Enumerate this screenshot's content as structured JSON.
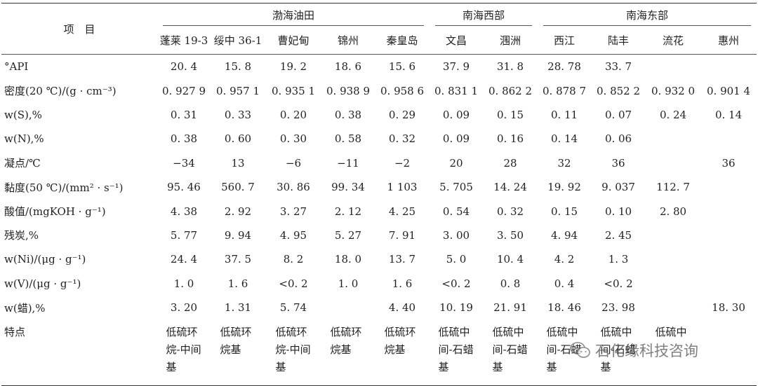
{
  "table": {
    "corner": "项　目",
    "groups": [
      {
        "name": "渤海油田",
        "span": 5
      },
      {
        "name": "南海西部",
        "span": 2
      },
      {
        "name": "南海东部",
        "span": 4
      }
    ],
    "columns": [
      "蓬莱 19-3",
      "绥中 36-1",
      "曹妃甸",
      "锦州",
      "秦皇岛",
      "文昌",
      "涠洲",
      "西江",
      "陆丰",
      "流花",
      "惠州"
    ],
    "rows": [
      {
        "label": "°API",
        "values": [
          "20. 4",
          "15. 8",
          "19. 2",
          "18. 6",
          "15. 6",
          "37. 9",
          "31. 8",
          "28. 78",
          "33. 7",
          "",
          ""
        ]
      },
      {
        "label": "密度(20 ℃)/(g · cm⁻³)",
        "values": [
          "0. 927 9",
          "0. 957 1",
          "0. 935 1",
          "0. 938 9",
          "0. 958 6",
          "0. 831 1",
          "0. 862 2",
          "0. 878 7",
          "0. 852 2",
          "0. 932 0",
          "0. 901 4"
        ]
      },
      {
        "label": "w(S),%",
        "values": [
          "0. 31",
          "0. 33",
          "0. 20",
          "0. 38",
          "0. 29",
          "0. 09",
          "0. 15",
          "0. 11",
          "0. 07",
          "0. 24",
          "0. 14"
        ]
      },
      {
        "label": "w(N),%",
        "values": [
          "0. 38",
          "0. 60",
          "0. 30",
          "0. 58",
          "0. 32",
          "0. 09",
          "0. 16",
          "0. 14",
          "0. 06",
          "",
          ""
        ]
      },
      {
        "label": "凝点/℃",
        "values": [
          "−34",
          "13",
          "−6",
          "−11",
          "−2",
          "20",
          "28",
          "32",
          "36",
          "",
          "36"
        ]
      },
      {
        "label": "黏度(50 ℃)/(mm² · s⁻¹)",
        "values": [
          "95. 46",
          "560. 7",
          "30. 86",
          "99. 34",
          "1 103",
          "5. 705",
          "14. 24",
          "19. 92",
          "9. 037",
          "112. 7",
          ""
        ]
      },
      {
        "label": "酸值/(mgKOH · g⁻¹)",
        "values": [
          "4. 38",
          "2. 92",
          "3. 27",
          "2. 12",
          "4. 25",
          "0. 54",
          "0. 32",
          "0. 15",
          "0. 10",
          "2. 80",
          ""
        ]
      },
      {
        "label": "残炭,%",
        "values": [
          "5. 77",
          "9. 94",
          "4. 95",
          "5. 27",
          "7. 91",
          "3. 00",
          "3. 50",
          "4. 94",
          "2. 45",
          "",
          ""
        ]
      },
      {
        "label": "w(Ni)/(μg · g⁻¹)",
        "values": [
          "24. 4",
          "37. 5",
          "8. 2",
          "18. 0",
          "13. 7",
          "5. 0",
          "10. 4",
          "4. 2",
          "1. 3",
          "",
          ""
        ]
      },
      {
        "label": "w(V)/(μg · g⁻¹)",
        "values": [
          "1. 0",
          "1. 6",
          "<0. 2",
          "1. 0",
          "1. 6",
          "<0. 2",
          "0. 8",
          "0. 4",
          "<0. 2",
          "",
          ""
        ]
      },
      {
        "label": "w(蜡),%",
        "values": [
          "3. 20",
          "1. 31",
          "5. 74",
          "",
          "4. 40",
          "10. 19",
          "21. 91",
          "18. 46",
          "23. 98",
          "",
          "18. 30"
        ]
      }
    ],
    "feature_row": {
      "label": "特点",
      "values": [
        "低硫环烷-中间基",
        "低硫环烷基",
        "低硫环烷-中间基",
        "低硫环烷基",
        "低硫环烷基",
        "低硫中间-石蜡基",
        "低硫中间-石蜡基",
        "低硫中间-石蜡基",
        "低硫中间-石蜡基",
        "低硫中",
        ""
      ]
    }
  },
  "watermark": {
    "text": "石化缘科技咨询",
    "icon": "wechat-icon"
  }
}
